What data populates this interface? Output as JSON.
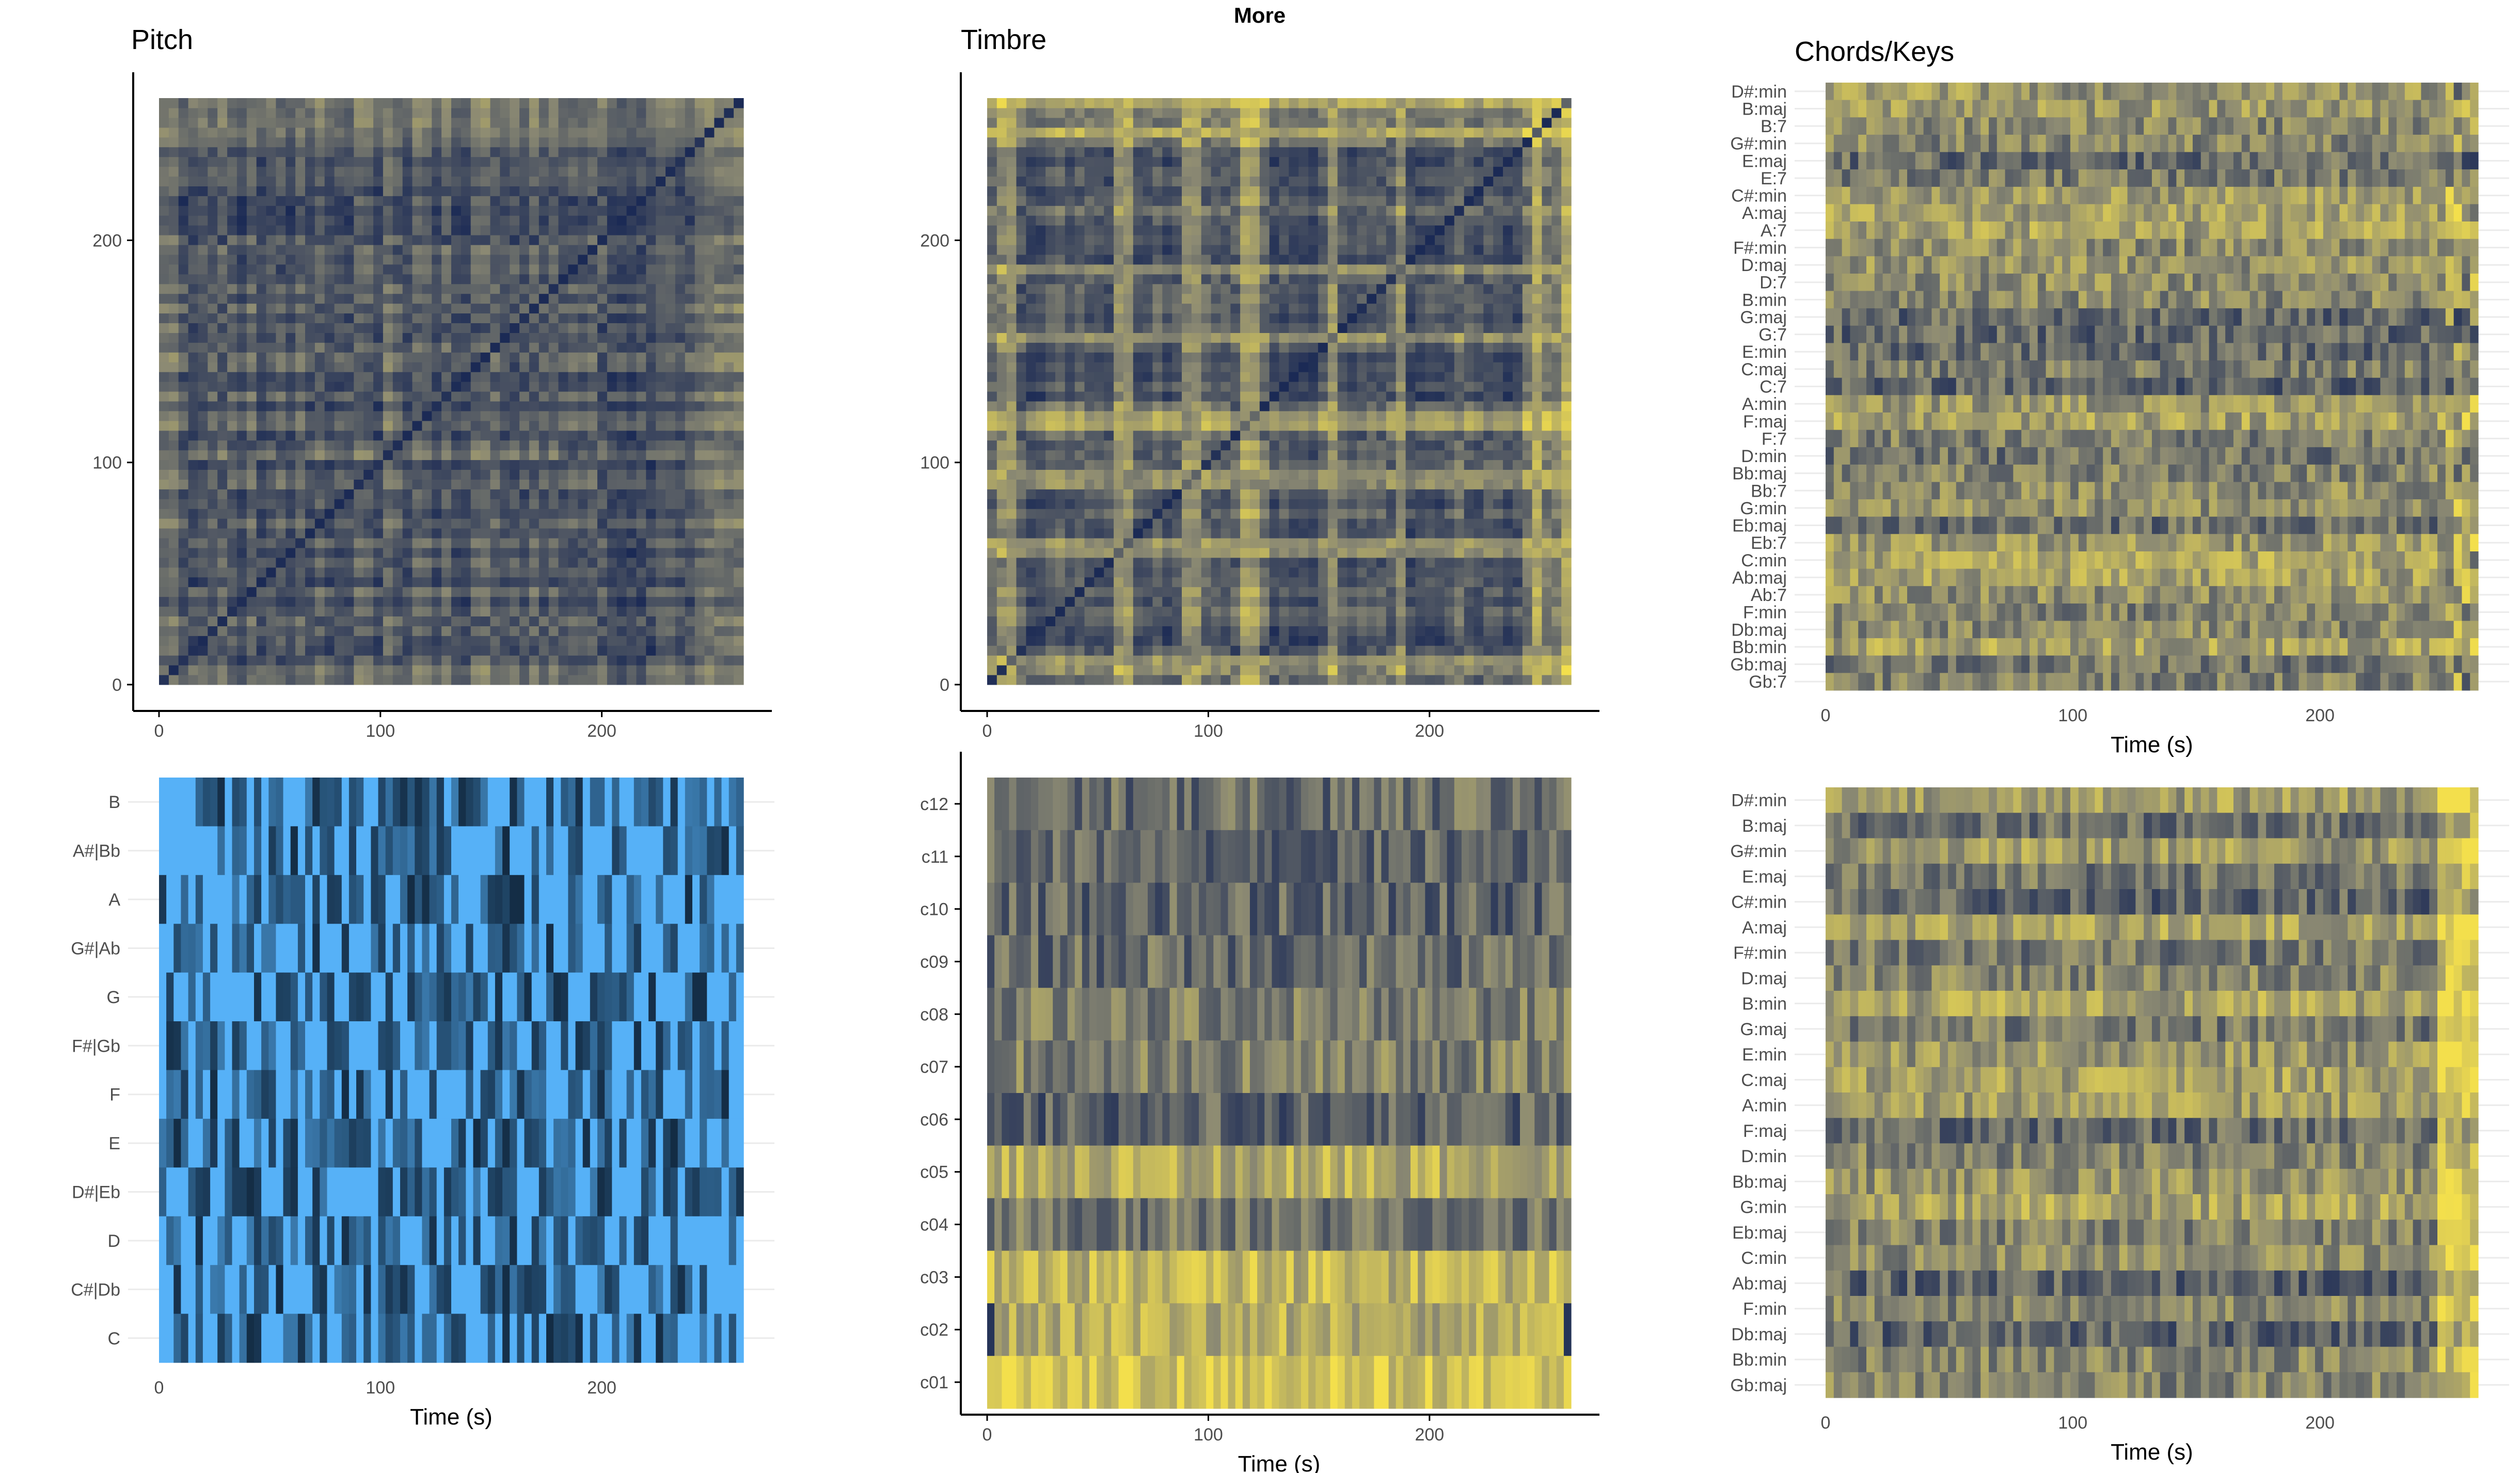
{
  "page": {
    "title": "More"
  },
  "colors": {
    "navy": "#1b2a55",
    "khaki": "#8c8a73",
    "yellow": "#f3df4c",
    "light_blue": "#56b1f7",
    "dark_blue": "#132b43",
    "axis": "#000000",
    "tick_text": "#4d4d4d",
    "grid": "#ebebeb"
  },
  "chart_data": [
    {
      "id": "pitch-ssm",
      "type": "heatmap",
      "title": "Pitch",
      "xlabel": "",
      "ylabel": "",
      "xlim": [
        -5,
        278
      ],
      "ylim": [
        -5,
        272
      ],
      "extent": {
        "x": [
          0,
          264
        ],
        "y": [
          0,
          264
        ]
      },
      "xticks": [
        0,
        100,
        200
      ],
      "yticks": [
        0,
        100,
        200
      ],
      "palette": "cividis",
      "axes": true,
      "grid": false,
      "description_values": {
        "diagonal": "low distance",
        "right_and_top_edges": "high distance"
      }
    },
    {
      "id": "timbre-ssm",
      "type": "heatmap",
      "title": "Timbre",
      "xlabel": "",
      "ylabel": "",
      "xlim": [
        -5,
        278
      ],
      "ylim": [
        -5,
        272
      ],
      "extent": {
        "x": [
          0,
          264
        ],
        "y": [
          0,
          264
        ]
      },
      "xticks": [
        0,
        100,
        200
      ],
      "yticks": [
        0,
        100,
        200
      ],
      "palette": "cividis",
      "axes": true,
      "grid": false,
      "section_boundaries": [
        9,
        58,
        65,
        90,
        95,
        115,
        120,
        155,
        188,
        250,
        260
      ]
    },
    {
      "id": "chords-keys-top",
      "type": "heatmap",
      "title": "Chords/Keys",
      "xlabel": "Time (s)",
      "ylabel": "",
      "xlim": [
        -5,
        278
      ],
      "extent": {
        "x": [
          0,
          264
        ]
      },
      "xticks": [
        0,
        100,
        200
      ],
      "categories": [
        "D#:min",
        "B:maj",
        "B:7",
        "G#:min",
        "E:maj",
        "E:7",
        "C#:min",
        "A:maj",
        "A:7",
        "F#:min",
        "D:maj",
        "D:7",
        "B:min",
        "G:maj",
        "G:7",
        "E:min",
        "C:maj",
        "C:7",
        "A:min",
        "F:maj",
        "F:7",
        "D:min",
        "Bb:maj",
        "Bb:7",
        "G:min",
        "Eb:maj",
        "Eb:7",
        "C:min",
        "Ab:maj",
        "Ab:7",
        "F:min",
        "Db:maj",
        "Bb:min",
        "Gb:maj",
        "Gb:7"
      ],
      "palette": "cividis",
      "axes": false,
      "grid": true
    },
    {
      "id": "chromagram",
      "type": "heatmap",
      "title": "",
      "xlabel": "Time (s)",
      "ylabel": "",
      "xlim": [
        -5,
        278
      ],
      "extent": {
        "x": [
          0,
          264
        ]
      },
      "xticks": [
        0,
        100,
        200
      ],
      "categories": [
        "B",
        "A#|Bb",
        "A",
        "G#|Ab",
        "G",
        "F#|Gb",
        "F",
        "E",
        "D#|Eb",
        "D",
        "C#|Db",
        "C"
      ],
      "palette": "blues",
      "axes": false,
      "grid": true
    },
    {
      "id": "cepstrogram",
      "type": "heatmap",
      "title": "",
      "xlabel": "Time (s)",
      "ylabel": "",
      "xlim": [
        -5,
        278
      ],
      "extent": {
        "x": [
          0,
          264
        ]
      },
      "xticks": [
        0,
        100,
        200
      ],
      "categories": [
        "c12",
        "c11",
        "c10",
        "c09",
        "c08",
        "c07",
        "c06",
        "c05",
        "c04",
        "c03",
        "c02",
        "c01"
      ],
      "row_mean_brightness": [
        0.35,
        0.3,
        0.32,
        0.35,
        0.45,
        0.45,
        0.3,
        0.7,
        0.4,
        0.75,
        0.7,
        0.85
      ],
      "palette": "cividis",
      "axes": true,
      "grid": false
    },
    {
      "id": "keys-bottom",
      "type": "heatmap",
      "title": "",
      "xlabel": "Time (s)",
      "ylabel": "",
      "xlim": [
        -5,
        278
      ],
      "extent": {
        "x": [
          0,
          264
        ]
      },
      "xticks": [
        0,
        100,
        200
      ],
      "categories": [
        "D#:min",
        "B:maj",
        "G#:min",
        "E:maj",
        "C#:min",
        "A:maj",
        "F#:min",
        "D:maj",
        "B:min",
        "G:maj",
        "E:min",
        "C:maj",
        "A:min",
        "F:maj",
        "D:min",
        "Bb:maj",
        "G:min",
        "Eb:maj",
        "C:min",
        "Ab:maj",
        "F:min",
        "Db:maj",
        "Bb:min",
        "Gb:maj"
      ],
      "palette": "cividis",
      "axes": false,
      "grid": true
    }
  ]
}
